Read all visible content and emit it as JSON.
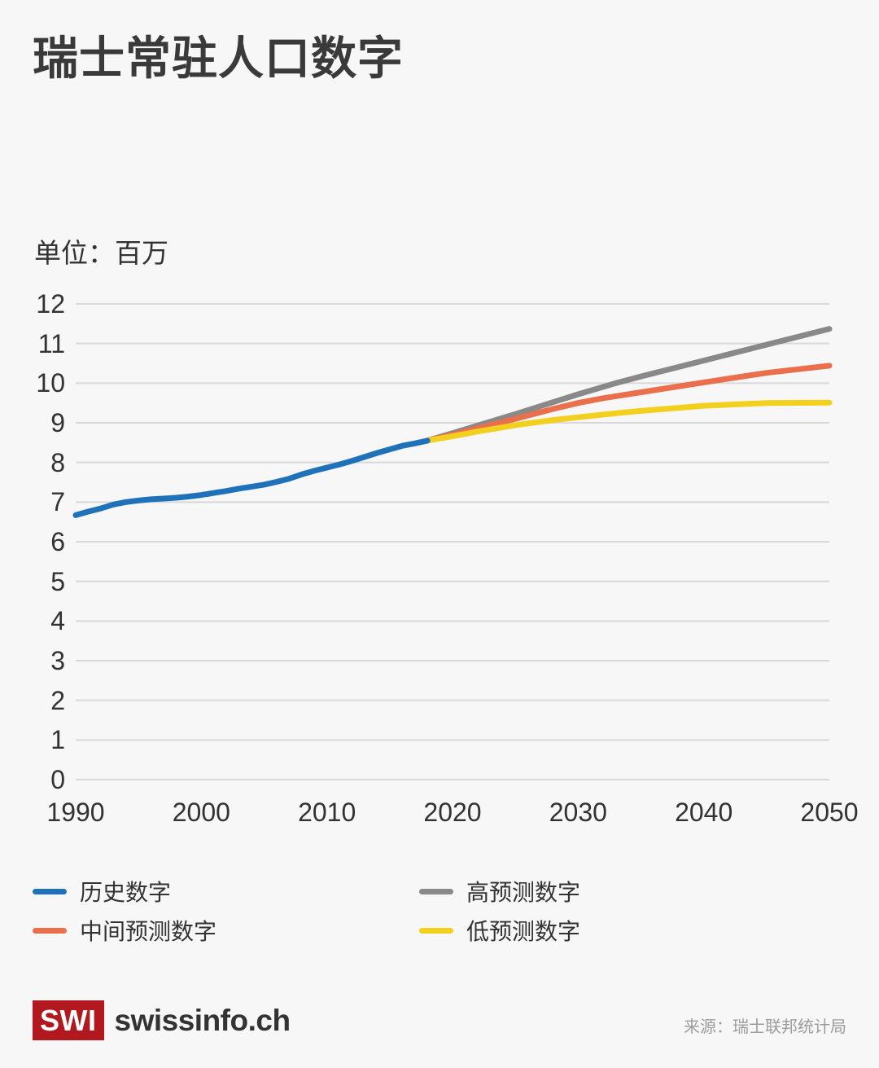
{
  "chart_data": {
    "type": "line",
    "title": "瑞士常驻人口数字",
    "unit_label": "单位：百万",
    "xlabel": "",
    "ylabel": "",
    "xlim": [
      1990,
      2050
    ],
    "ylim": [
      0,
      12
    ],
    "x_ticks": [
      1990,
      2000,
      2010,
      2020,
      2030,
      2040,
      2050
    ],
    "y_ticks": [
      0,
      1,
      2,
      3,
      4,
      5,
      6,
      7,
      8,
      9,
      10,
      11,
      12
    ],
    "grid": true,
    "series": [
      {
        "key": "high-projection",
        "name": "高预测数字",
        "color": "#898989",
        "x": [
          2018,
          2020,
          2022,
          2025,
          2028,
          2030,
          2033,
          2035,
          2040,
          2045,
          2050
        ],
        "values": [
          8.55,
          8.74,
          8.93,
          9.22,
          9.52,
          9.72,
          10.0,
          10.17,
          10.57,
          10.97,
          11.37
        ]
      },
      {
        "key": "middle-projection",
        "name": "中间预测数字",
        "color": "#ea6f4c",
        "x": [
          2018,
          2020,
          2022,
          2025,
          2028,
          2030,
          2032,
          2035,
          2040,
          2045,
          2050
        ],
        "values": [
          8.55,
          8.7,
          8.86,
          9.1,
          9.35,
          9.5,
          9.62,
          9.77,
          10.02,
          10.26,
          10.44
        ]
      },
      {
        "key": "low-projection",
        "name": "低预测数字",
        "color": "#f4d01e",
        "x": [
          2018,
          2020,
          2022,
          2025,
          2028,
          2030,
          2033,
          2035,
          2040,
          2045,
          2050
        ],
        "values": [
          8.55,
          8.66,
          8.78,
          8.94,
          9.07,
          9.14,
          9.24,
          9.3,
          9.43,
          9.5,
          9.51
        ]
      },
      {
        "key": "historical",
        "name": "历史数字",
        "color": "#1f72b9",
        "x": [
          1990,
          1991,
          1992,
          1993,
          1994,
          1995,
          1996,
          1997,
          1998,
          1999,
          2000,
          2001,
          2002,
          2003,
          2004,
          2005,
          2006,
          2007,
          2008,
          2009,
          2010,
          2011,
          2012,
          2013,
          2014,
          2015,
          2016,
          2017,
          2018
        ],
        "values": [
          6.67,
          6.76,
          6.84,
          6.94,
          7.0,
          7.04,
          7.07,
          7.09,
          7.11,
          7.14,
          7.18,
          7.23,
          7.28,
          7.34,
          7.39,
          7.44,
          7.51,
          7.59,
          7.7,
          7.79,
          7.87,
          7.95,
          8.04,
          8.14,
          8.24,
          8.33,
          8.42,
          8.48,
          8.55
        ]
      }
    ],
    "legend": {
      "position": "bottom",
      "items": [
        {
          "key": "historical",
          "label": "历史数字",
          "color": "#1f72b9"
        },
        {
          "key": "high-projection",
          "label": "高预测数字",
          "color": "#898989"
        },
        {
          "key": "middle-projection",
          "label": "中间预测数字",
          "color": "#ea6f4c"
        },
        {
          "key": "low-projection",
          "label": "低预测数字",
          "color": "#f4d01e"
        }
      ]
    }
  },
  "footer": {
    "logo_mark": "SWI",
    "logo_text": "swissinfo.ch",
    "logo_color": "#b2191f",
    "source": "来源：瑞士联邦统计局"
  },
  "theme": {
    "background": "#f7f7f7",
    "gridline": "#d9d9d9",
    "title_text": "#3a3a3a",
    "axis_text": "#323232",
    "source_text": "#9c9c9c"
  }
}
